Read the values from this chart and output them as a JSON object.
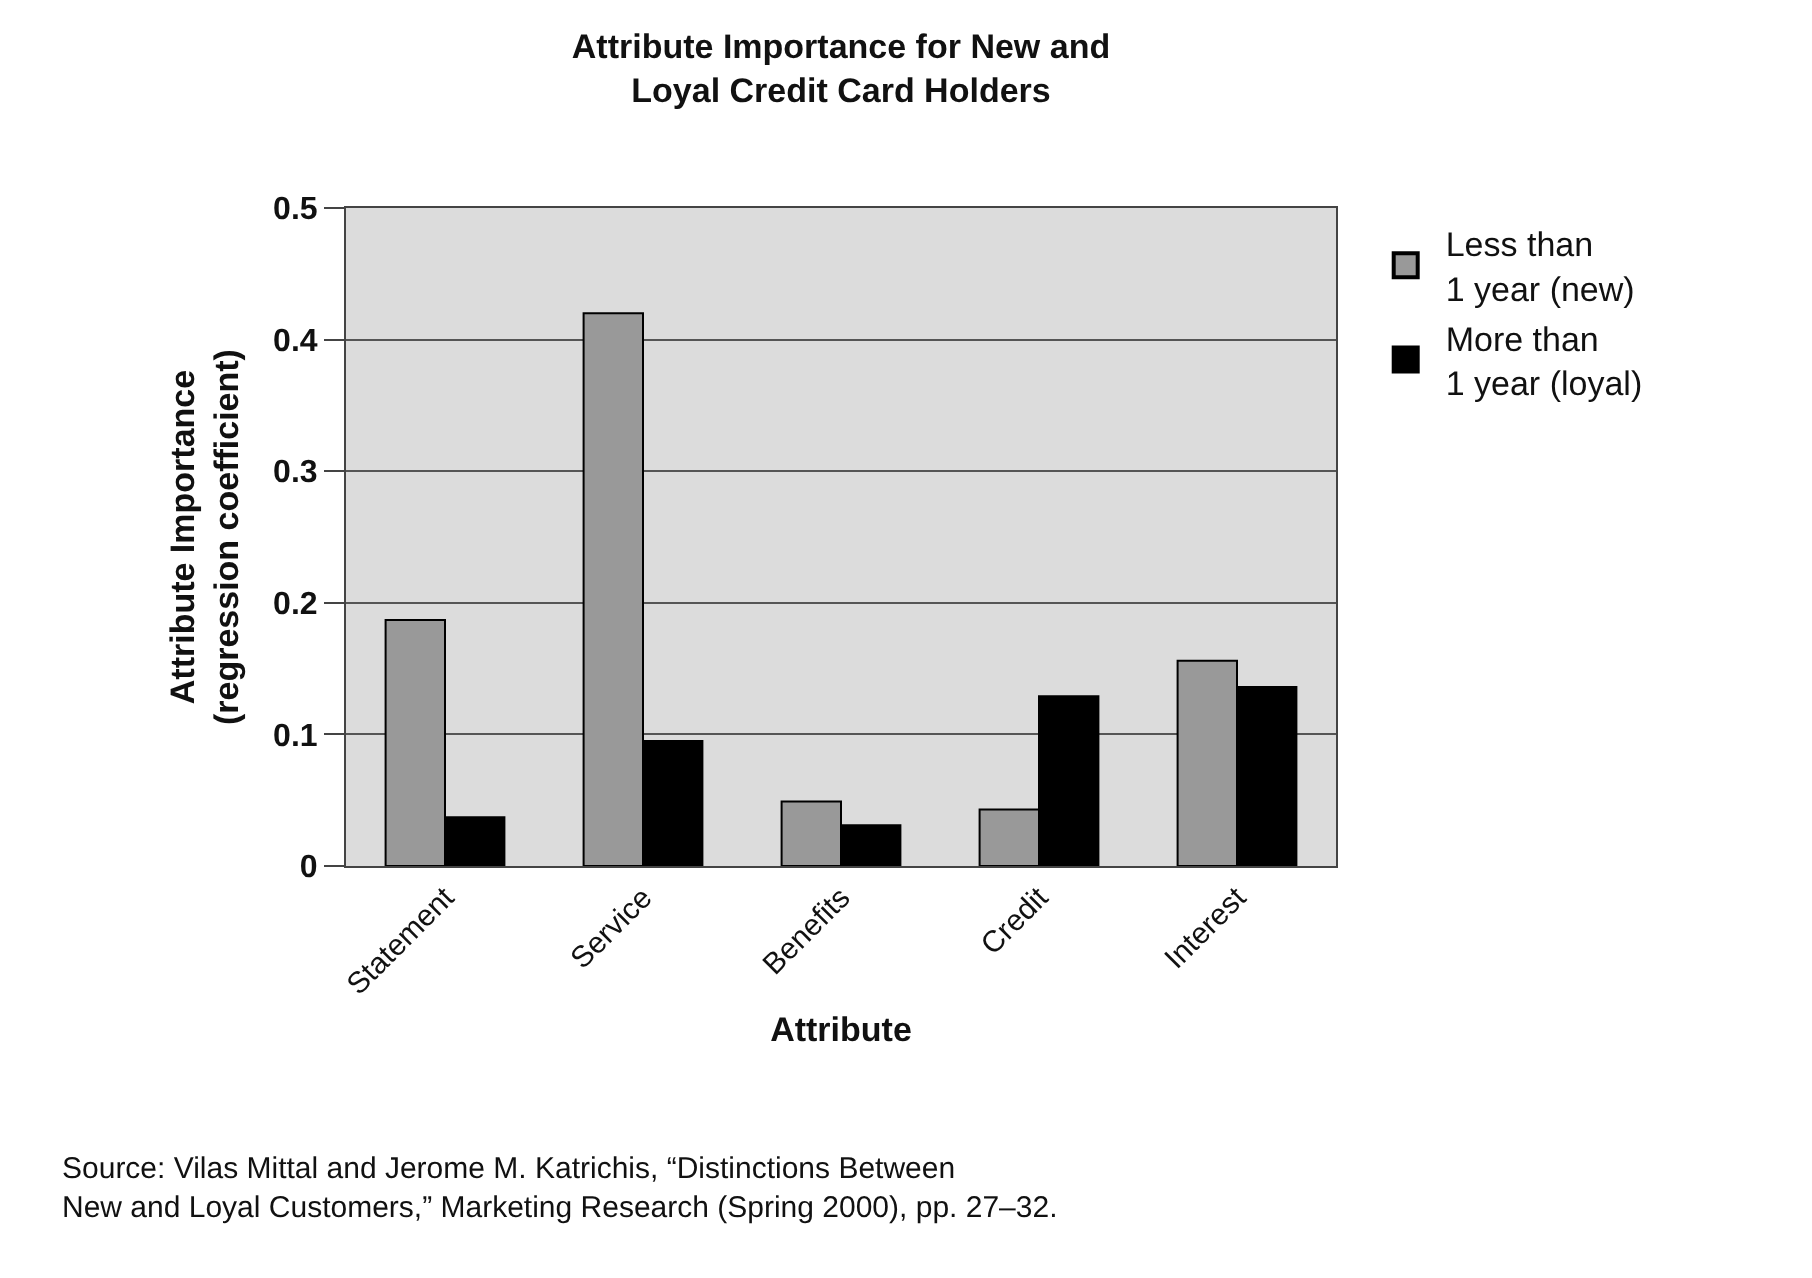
{
  "chart_data": {
    "type": "bar",
    "title": "Attribute Importance for New and\nLoyal Credit Card Holders",
    "xlabel": "Attribute",
    "ylabel": "Attribute Importance\n(regression coefficient)",
    "categories": [
      "Statement",
      "Service",
      "Benefits",
      "Credit",
      "Interest"
    ],
    "series": [
      {
        "name": "Less than\n1 year (new)",
        "color": "#999999",
        "values": [
          0.187,
          0.42,
          0.049,
          0.043,
          0.156
        ]
      },
      {
        "name": "More than\n1 year (loyal)",
        "color": "#000000",
        "values": [
          0.037,
          0.095,
          0.031,
          0.129,
          0.136
        ]
      }
    ],
    "ylim": [
      0,
      0.5
    ],
    "yticks": [
      0,
      0.1,
      0.2,
      0.3,
      0.4,
      0.5
    ],
    "grid": "y",
    "legend": "top right",
    "annotations": [
      "Source: Vilas Mittal and Jerome M. Katrichis, “Distinctions Between\nNew and Loyal Customers,” Marketing Research (Spring 2000), pp. 27–32."
    ]
  }
}
